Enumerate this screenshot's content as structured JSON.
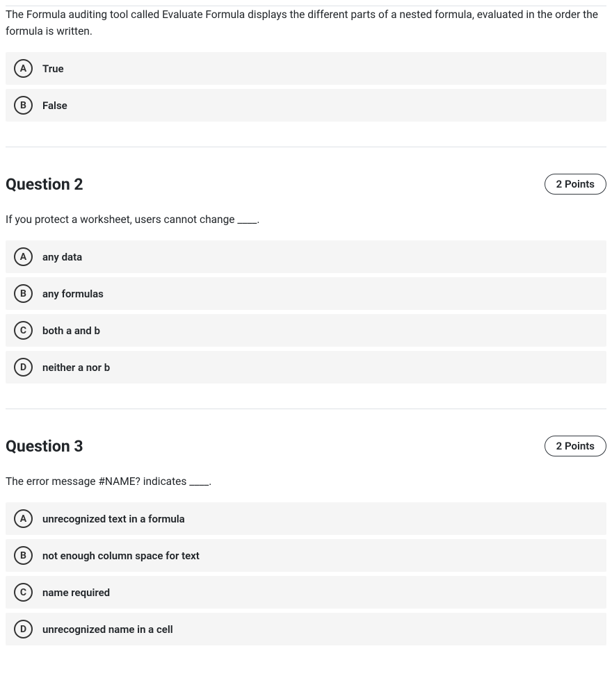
{
  "questions": [
    {
      "title": "",
      "points": "",
      "text": "The Formula auditing tool called Evaluate Formula displays the different parts of a nested formula, evaluated in the order the formula is written.",
      "options": [
        {
          "letter": "A",
          "label": "True"
        },
        {
          "letter": "B",
          "label": "False"
        }
      ]
    },
    {
      "title": "Question 2",
      "points": "2 Points",
      "text": "If you protect a worksheet, users cannot change ____.",
      "options": [
        {
          "letter": "A",
          "label": "any data"
        },
        {
          "letter": "B",
          "label": "any formulas"
        },
        {
          "letter": "C",
          "label": "both a and b"
        },
        {
          "letter": "D",
          "label": "neither a nor b"
        }
      ]
    },
    {
      "title": "Question 3",
      "points": "2 Points",
      "text": "The error message #NAME? indicates ____.",
      "options": [
        {
          "letter": "A",
          "label": "unrecognized text in a formula"
        },
        {
          "letter": "B",
          "label": "not enough column space for text"
        },
        {
          "letter": "C",
          "label": "name required"
        },
        {
          "letter": "D",
          "label": "unrecognized name in a cell"
        }
      ]
    }
  ]
}
